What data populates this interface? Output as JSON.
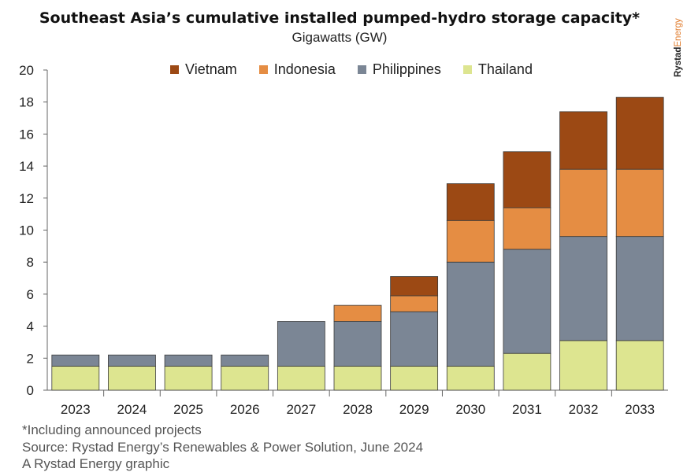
{
  "title": "Southeast Asia’s cumulative installed pumped-hydro storage capacity*",
  "subtitle": "Gigawatts (GW)",
  "brand": "RystadEnergy",
  "footnotes": {
    "note": "*Including announced projects",
    "source": "Source: Rystad Energy’s Renewables & Power Solution, June 2024",
    "credit": "A Rystad Energy graphic"
  },
  "chart_data": {
    "type": "bar",
    "stacked": true,
    "categories": [
      "2023",
      "2024",
      "2025",
      "2026",
      "2027",
      "2028",
      "2029",
      "2030",
      "2031",
      "2032",
      "2033"
    ],
    "series": [
      {
        "name": "Thailand",
        "color": "#dde590",
        "values": [
          1.5,
          1.5,
          1.5,
          1.5,
          1.5,
          1.5,
          1.5,
          1.5,
          2.3,
          3.1,
          3.1
        ]
      },
      {
        "name": "Philippines",
        "color": "#7b8695",
        "values": [
          0.7,
          0.7,
          0.7,
          0.7,
          2.8,
          2.8,
          3.4,
          6.5,
          6.5,
          6.5,
          6.5
        ]
      },
      {
        "name": "Indonesia",
        "color": "#e58d43",
        "values": [
          0,
          0,
          0,
          0,
          0,
          1.0,
          1.0,
          2.6,
          2.6,
          4.2,
          4.2
        ]
      },
      {
        "name": "Vietnam",
        "color": "#9c4914",
        "values": [
          0,
          0,
          0,
          0,
          0,
          0,
          1.2,
          2.3,
          3.5,
          3.6,
          4.5
        ]
      }
    ],
    "legend_order": [
      "Vietnam",
      "Indonesia",
      "Philippines",
      "Thailand"
    ],
    "ylim": [
      0,
      20
    ],
    "yticks": [
      0,
      2,
      4,
      6,
      8,
      10,
      12,
      14,
      16,
      18,
      20
    ],
    "grid": false,
    "legend_position": "top-center"
  }
}
